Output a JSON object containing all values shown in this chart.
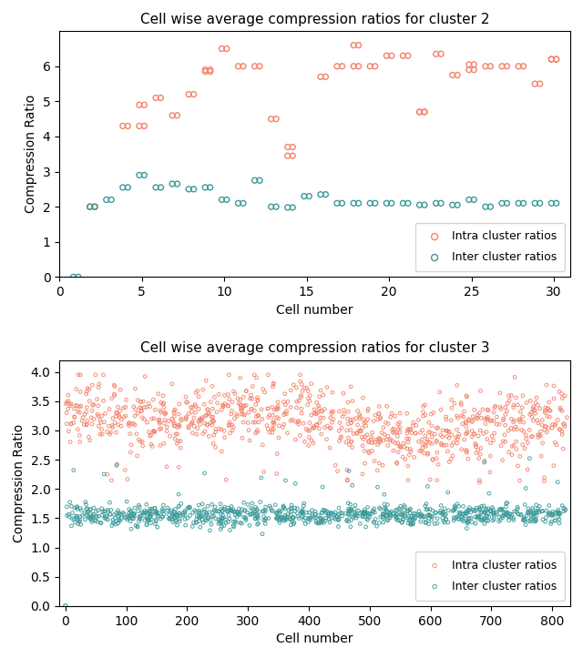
{
  "title1": "Cell wise average compression ratios for cluster 2",
  "title2": "Cell wise average compression ratios for cluster 3",
  "xlabel": "Cell number",
  "ylabel": "Compression Ratio",
  "intra_color": "#F4826A",
  "inter_color": "#3B9999",
  "legend_intra": "Intra cluster ratios",
  "legend_inter": "Inter cluster ratios",
  "cluster2": {
    "intra_x": [
      2,
      2,
      4,
      5,
      5,
      6,
      7,
      8,
      9,
      9,
      10,
      11,
      12,
      13,
      14,
      14,
      16,
      17,
      18,
      18,
      19,
      20,
      21,
      22,
      22,
      23,
      24,
      25,
      25,
      26,
      27,
      28,
      29,
      30,
      30
    ],
    "intra_y": [
      2.0,
      2.0,
      4.3,
      4.9,
      4.3,
      5.1,
      4.6,
      5.2,
      5.9,
      5.85,
      6.5,
      6.0,
      6.0,
      4.5,
      3.7,
      3.45,
      5.7,
      6.0,
      6.6,
      6.0,
      6.0,
      6.3,
      6.3,
      4.7,
      4.7,
      6.35,
      5.75,
      5.9,
      6.05,
      6.0,
      6.0,
      6.0,
      5.5,
      6.2,
      6.2
    ],
    "inter_x": [
      1,
      2,
      3,
      4,
      5,
      6,
      7,
      8,
      9,
      10,
      11,
      12,
      13,
      14,
      15,
      16,
      17,
      18,
      19,
      20,
      21,
      22,
      23,
      24,
      25,
      26,
      27,
      28,
      29,
      30
    ],
    "inter_y": [
      0.0,
      2.0,
      2.2,
      2.55,
      2.9,
      2.55,
      2.65,
      2.5,
      2.55,
      2.2,
      2.1,
      2.75,
      2.0,
      1.98,
      2.3,
      2.35,
      2.1,
      2.1,
      2.1,
      2.1,
      2.1,
      2.05,
      2.1,
      2.05,
      2.2,
      2.0,
      2.1,
      2.1,
      2.1,
      2.1
    ],
    "ylim": [
      0,
      7
    ],
    "xlim": [
      0,
      31
    ],
    "yticks": [
      0,
      1,
      2,
      3,
      4,
      5,
      6
    ]
  },
  "cluster3": {
    "n_intra": 900,
    "n_inter": 900,
    "intra_mean": 3.15,
    "intra_std": 0.28,
    "inter_mean": 1.55,
    "inter_std": 0.09,
    "xlim": [
      -10,
      830
    ],
    "ylim": [
      0.0,
      4.2
    ],
    "yticks": [
      0.0,
      0.5,
      1.0,
      1.5,
      2.0,
      2.5,
      3.0,
      3.5,
      4.0
    ]
  },
  "marker_size1": 18,
  "marker_size2": 7,
  "marker_style": "o",
  "fig_width": 6.4,
  "fig_height": 7.23,
  "dpi": 100
}
